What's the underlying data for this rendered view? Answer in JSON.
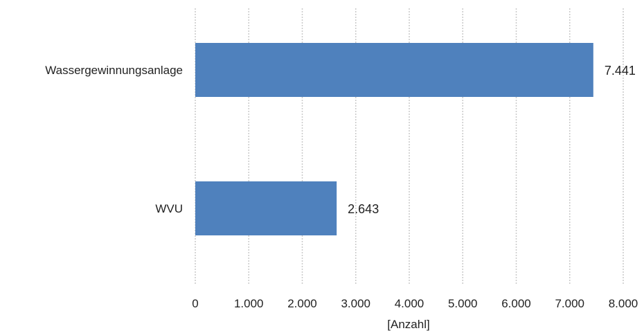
{
  "chart_data": {
    "type": "bar",
    "orientation": "horizontal",
    "categories": [
      "Wassergewinnungsanlage",
      "WVU"
    ],
    "values": [
      7441,
      2643
    ],
    "data_labels": [
      "7.441",
      "2.643"
    ],
    "xlabel": "[Anzahl]",
    "ylabel": "",
    "xlim": [
      0,
      8000
    ],
    "xticks": [
      0,
      1000,
      2000,
      3000,
      4000,
      5000,
      6000,
      7000,
      8000
    ],
    "xtick_labels": [
      "0",
      "1.000",
      "2.000",
      "3.000",
      "4.000",
      "5.000",
      "6.000",
      "7.000",
      "8.000"
    ],
    "grid": true,
    "bar_color": "#4f81bd"
  }
}
